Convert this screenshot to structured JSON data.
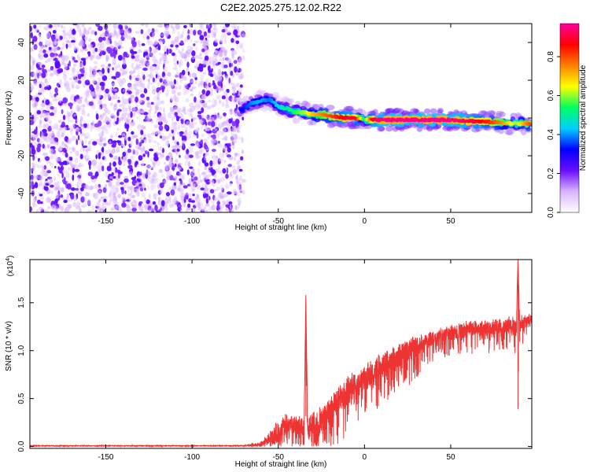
{
  "figure": {
    "title": "C2E2.2025.275.12.02.R22"
  },
  "chart_data": [
    {
      "type": "heatmap",
      "xlabel": "Height of straight line (km)",
      "ylabel": "Frequency (Hz)",
      "xlim": [
        -194,
        97
      ],
      "ylim": [
        -50,
        50
      ],
      "xticks": [
        -150,
        -100,
        -50,
        0,
        50
      ],
      "yticks": [
        -40,
        -20,
        0,
        20,
        40
      ],
      "colorbar": {
        "label": "Normalized spectral amplitude",
        "range": [
          0,
          0.97
        ],
        "ticks": [
          0.0,
          0.2,
          0.4,
          0.6,
          0.8
        ],
        "tick_labels": [
          "0.0",
          "0.2",
          "0.4",
          "0.6",
          "0.8"
        ],
        "colormap": [
          "#ffffff",
          "#d9b3ff",
          "#6a0dff",
          "#0000ff",
          "#00d0ff",
          "#00ff60",
          "#ffff00",
          "#ff8000",
          "#ff0000",
          "#ff00a0"
        ]
      },
      "noise_region": {
        "x": [
          -194,
          -70
        ],
        "y": [
          -50,
          50
        ],
        "amplitude_range": [
          0.05,
          0.2
        ]
      },
      "ridge": {
        "x": [
          -72,
          -65,
          -60,
          -55,
          -50,
          -45,
          -40,
          -35,
          -30,
          -25,
          -20,
          -15,
          -10,
          -5,
          0,
          5,
          10,
          20,
          30,
          40,
          50,
          60,
          70,
          80,
          88,
          92,
          96
        ],
        "y": [
          4,
          8,
          9,
          10,
          6,
          5,
          3,
          3,
          2,
          2,
          1,
          0.5,
          0,
          0,
          -1,
          -1,
          -1,
          -1,
          -1,
          -1,
          -1,
          -1.5,
          -2,
          -2.5,
          -3,
          -3,
          -3
        ],
        "amplitude": [
          0.3,
          0.4,
          0.42,
          0.38,
          0.45,
          0.5,
          0.55,
          0.6,
          0.7,
          0.75,
          0.8,
          0.85,
          0.9,
          0.9,
          0.5,
          0.9,
          0.95,
          0.95,
          0.95,
          0.95,
          0.95,
          0.92,
          0.85,
          0.75,
          0.6,
          0.7,
          0.8
        ]
      }
    },
    {
      "type": "line",
      "xlabel": "Height of straight line (km)",
      "ylabel": "SNR (10 * v/v)",
      "multiplier_label": "(x10",
      "multiplier_exp": "4",
      "multiplier_close": ")",
      "xlim": [
        -194,
        97
      ],
      "ylim": [
        -0.02,
        1.95
      ],
      "xticks": [
        -150,
        -100,
        -50,
        0,
        50
      ],
      "yticks": [
        0.0,
        0.5,
        1.0,
        1.5
      ],
      "ytick_labels": [
        "0.0",
        "0.5",
        "1.0",
        "1.5"
      ],
      "series": [
        {
          "color": "#ee3333",
          "x": [
            -194,
            -150,
            -100,
            -70,
            -60,
            -55,
            -50,
            -45,
            -40,
            -35,
            -34,
            -33,
            -30,
            -25,
            -20,
            -15,
            -10,
            -5,
            0,
            5,
            10,
            15,
            20,
            25,
            30,
            40,
            50,
            60,
            70,
            80,
            85,
            88,
            89,
            90,
            95,
            97
          ],
          "y": [
            0.01,
            0.01,
            0.01,
            0.01,
            0.05,
            0.15,
            0.25,
            0.35,
            0.3,
            0.3,
            1.58,
            0.3,
            0.35,
            0.4,
            0.5,
            0.6,
            0.7,
            0.75,
            0.85,
            0.9,
            0.95,
            1.0,
            1.05,
            1.1,
            1.15,
            1.2,
            1.25,
            1.3,
            1.3,
            1.32,
            1.35,
            1.3,
            1.95,
            1.35,
            1.38,
            1.38
          ],
          "noise_amplitude": [
            0.005,
            0.005,
            0.005,
            0.005,
            0.05,
            0.12,
            0.2,
            0.25,
            0.2,
            0.2,
            0,
            0.2,
            0.25,
            0.25,
            0.25,
            0.25,
            0.25,
            0.25,
            0.25,
            0.25,
            0.25,
            0.22,
            0.2,
            0.2,
            0.2,
            0.15,
            0.15,
            0.15,
            0.15,
            0.15,
            0.15,
            0.15,
            0,
            0.15,
            0.1,
            0.1
          ]
        }
      ]
    }
  ]
}
